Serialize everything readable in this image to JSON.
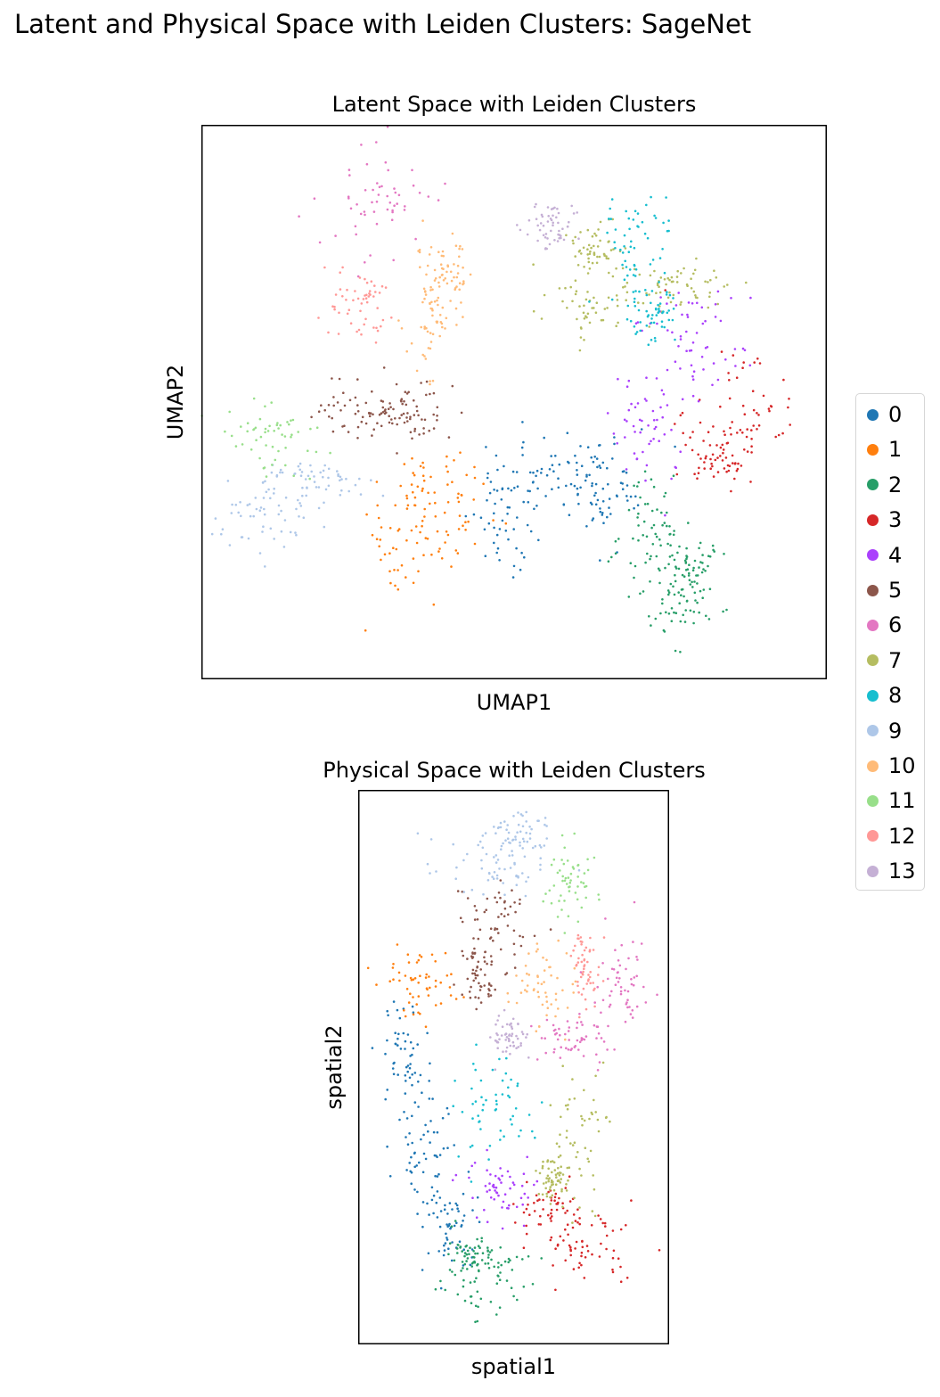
{
  "suptitle": "Latent and Physical Space with Leiden Clusters: SageNet",
  "legend": {
    "placement": "right",
    "entries": [
      {
        "label": "0",
        "color": "#1f77b4"
      },
      {
        "label": "1",
        "color": "#ff7f0e"
      },
      {
        "label": "2",
        "color": "#279e68"
      },
      {
        "label": "3",
        "color": "#d62728"
      },
      {
        "label": "4",
        "color": "#aa40fc"
      },
      {
        "label": "5",
        "color": "#8c564b"
      },
      {
        "label": "6",
        "color": "#e377c2"
      },
      {
        "label": "7",
        "color": "#b5bd61"
      },
      {
        "label": "8",
        "color": "#17becf"
      },
      {
        "label": "9",
        "color": "#aec7e8"
      },
      {
        "label": "10",
        "color": "#ffbb78"
      },
      {
        "label": "11",
        "color": "#98df8a"
      },
      {
        "label": "12",
        "color": "#ff9896"
      },
      {
        "label": "13",
        "color": "#c5b0d5"
      }
    ]
  },
  "chart_data": [
    {
      "type": "scatter",
      "title": "Latent Space with Leiden Clusters",
      "xlabel": "UMAP1",
      "ylabel": "UMAP2",
      "xlim": [
        0,
        100
      ],
      "ylim": [
        0,
        100
      ],
      "ticks": false,
      "grid": false,
      "series": [
        {
          "name": "0",
          "color": "#1f77b4",
          "blobs": [
            {
              "x": 49,
              "y": 30,
              "sx": 3,
              "sy": 6
            },
            {
              "x": 58,
              "y": 37,
              "sx": 5,
              "sy": 4
            },
            {
              "x": 64,
              "y": 34,
              "sx": 3,
              "sy": 5
            }
          ]
        },
        {
          "name": "1",
          "color": "#ff7f0e",
          "blobs": [
            {
              "x": 34,
              "y": 25,
              "sx": 4,
              "sy": 6
            },
            {
              "x": 38,
              "y": 33,
              "sx": 4,
              "sy": 5
            }
          ]
        },
        {
          "name": "2",
          "color": "#279e68",
          "blobs": [
            {
              "x": 72,
              "y": 27,
              "sx": 3,
              "sy": 5
            },
            {
              "x": 75,
              "y": 14,
              "sx": 3,
              "sy": 4
            },
            {
              "x": 79,
              "y": 20,
              "sx": 2,
              "sy": 3
            }
          ]
        },
        {
          "name": "3",
          "color": "#d62728",
          "blobs": [
            {
              "x": 86,
              "y": 48,
              "sx": 4,
              "sy": 7
            },
            {
              "x": 83,
              "y": 40,
              "sx": 3,
              "sy": 3
            }
          ]
        },
        {
          "name": "4",
          "color": "#aa40fc",
          "blobs": [
            {
              "x": 72,
              "y": 46,
              "sx": 3,
              "sy": 6
            },
            {
              "x": 79,
              "y": 62,
              "sx": 4,
              "sy": 5
            }
          ]
        },
        {
          "name": "5",
          "color": "#8c564b",
          "blobs": [
            {
              "x": 26,
              "y": 49,
              "sx": 5,
              "sy": 3
            },
            {
              "x": 33,
              "y": 48,
              "sx": 4,
              "sy": 3
            }
          ]
        },
        {
          "name": "6",
          "color": "#e377c2",
          "blobs": [
            {
              "x": 29,
              "y": 87,
              "sx": 5,
              "sy": 5
            }
          ]
        },
        {
          "name": "7",
          "color": "#b5bd61",
          "blobs": [
            {
              "x": 62,
              "y": 68,
              "sx": 4,
              "sy": 3
            },
            {
              "x": 63,
              "y": 77,
              "sx": 2,
              "sy": 3
            },
            {
              "x": 77,
              "y": 71,
              "sx": 3,
              "sy": 2
            }
          ]
        },
        {
          "name": "8",
          "color": "#17becf",
          "blobs": [
            {
              "x": 70,
              "y": 78,
              "sx": 3,
              "sy": 5
            },
            {
              "x": 72,
              "y": 66,
              "sx": 2,
              "sy": 3
            }
          ]
        },
        {
          "name": "9",
          "color": "#aec7e8",
          "blobs": [
            {
              "x": 10,
              "y": 30,
              "sx": 4,
              "sy": 4
            },
            {
              "x": 19,
              "y": 36,
              "sx": 5,
              "sy": 2
            }
          ]
        },
        {
          "name": "10",
          "color": "#ffbb78",
          "blobs": [
            {
              "x": 37,
              "y": 65,
              "sx": 2,
              "sy": 6
            },
            {
              "x": 39,
              "y": 73,
              "sx": 2,
              "sy": 3
            }
          ]
        },
        {
          "name": "11",
          "color": "#98df8a",
          "blobs": [
            {
              "x": 11,
              "y": 44,
              "sx": 4,
              "sy": 3
            }
          ]
        },
        {
          "name": "12",
          "color": "#ff9896",
          "blobs": [
            {
              "x": 25,
              "y": 68,
              "sx": 3,
              "sy": 3
            }
          ]
        },
        {
          "name": "13",
          "color": "#c5b0d5",
          "blobs": [
            {
              "x": 56,
              "y": 82,
              "sx": 2,
              "sy": 2
            }
          ]
        }
      ]
    },
    {
      "type": "scatter",
      "title": "Physical Space with Leiden Clusters",
      "xlabel": "spatial1",
      "ylabel": "spatial2",
      "xlim": [
        0,
        100
      ],
      "ylim": [
        0,
        100
      ],
      "ticks": false,
      "grid": false,
      "series": [
        {
          "name": "0",
          "color": "#1f77b4",
          "blobs": [
            {
              "x": 16,
              "y": 52,
              "sx": 5,
              "sy": 6
            },
            {
              "x": 22,
              "y": 35,
              "sx": 5,
              "sy": 6
            },
            {
              "x": 29,
              "y": 21,
              "sx": 4,
              "sy": 4
            }
          ]
        },
        {
          "name": "1",
          "color": "#ff7f0e",
          "blobs": [
            {
              "x": 19,
              "y": 65,
              "sx": 7,
              "sy": 4
            }
          ]
        },
        {
          "name": "2",
          "color": "#279e68",
          "blobs": [
            {
              "x": 42,
              "y": 12,
              "sx": 8,
              "sy": 3
            },
            {
              "x": 36,
              "y": 16,
              "sx": 4,
              "sy": 2
            }
          ]
        },
        {
          "name": "3",
          "color": "#d62728",
          "blobs": [
            {
              "x": 74,
              "y": 18,
              "sx": 7,
              "sy": 4
            },
            {
              "x": 62,
              "y": 24,
              "sx": 6,
              "sy": 3
            }
          ]
        },
        {
          "name": "4",
          "color": "#aa40fc",
          "blobs": [
            {
              "x": 46,
              "y": 28,
              "sx": 6,
              "sy": 3
            }
          ]
        },
        {
          "name": "5",
          "color": "#8c564b",
          "blobs": [
            {
              "x": 45,
              "y": 76,
              "sx": 6,
              "sy": 4
            },
            {
              "x": 38,
              "y": 66,
              "sx": 3,
              "sy": 3
            }
          ]
        },
        {
          "name": "6",
          "color": "#e377c2",
          "blobs": [
            {
              "x": 85,
              "y": 65,
              "sx": 5,
              "sy": 5
            },
            {
              "x": 70,
              "y": 55,
              "sx": 6,
              "sy": 2
            }
          ]
        },
        {
          "name": "7",
          "color": "#b5bd61",
          "blobs": [
            {
              "x": 72,
              "y": 37,
              "sx": 6,
              "sy": 7
            },
            {
              "x": 62,
              "y": 30,
              "sx": 3,
              "sy": 2
            }
          ]
        },
        {
          "name": "8",
          "color": "#17becf",
          "blobs": [
            {
              "x": 46,
              "y": 42,
              "sx": 6,
              "sy": 5
            }
          ]
        },
        {
          "name": "9",
          "color": "#aec7e8",
          "blobs": [
            {
              "x": 46,
              "y": 86,
              "sx": 10,
              "sy": 3
            },
            {
              "x": 52,
              "y": 92,
              "sx": 5,
              "sy": 2
            }
          ]
        },
        {
          "name": "10",
          "color": "#ffbb78",
          "blobs": [
            {
              "x": 60,
              "y": 65,
              "sx": 5,
              "sy": 4
            }
          ]
        },
        {
          "name": "11",
          "color": "#98df8a",
          "blobs": [
            {
              "x": 68,
              "y": 83,
              "sx": 4,
              "sy": 4
            }
          ]
        },
        {
          "name": "12",
          "color": "#ff9896",
          "blobs": [
            {
              "x": 73,
              "y": 68,
              "sx": 2,
              "sy": 4
            }
          ]
        },
        {
          "name": "13",
          "color": "#c5b0d5",
          "blobs": [
            {
              "x": 48,
              "y": 55,
              "sx": 3,
              "sy": 2
            }
          ]
        }
      ]
    }
  ]
}
